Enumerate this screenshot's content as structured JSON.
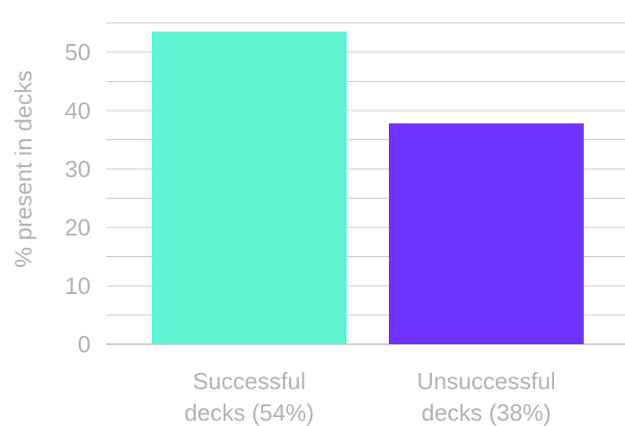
{
  "chart_data": {
    "type": "bar",
    "categories": [
      [
        "Successful",
        "decks (54%)"
      ],
      [
        "Unsuccessful",
        "decks (38%)"
      ]
    ],
    "values": [
      53.5,
      37.8
    ],
    "colors": [
      "#5cf2d2",
      "#6f32ff"
    ],
    "ylabel": "% present in decks",
    "ylim": [
      0,
      55
    ],
    "yticks": [
      0,
      10,
      20,
      30,
      40,
      50
    ],
    "minor_grid_step": 5,
    "grid": true
  }
}
